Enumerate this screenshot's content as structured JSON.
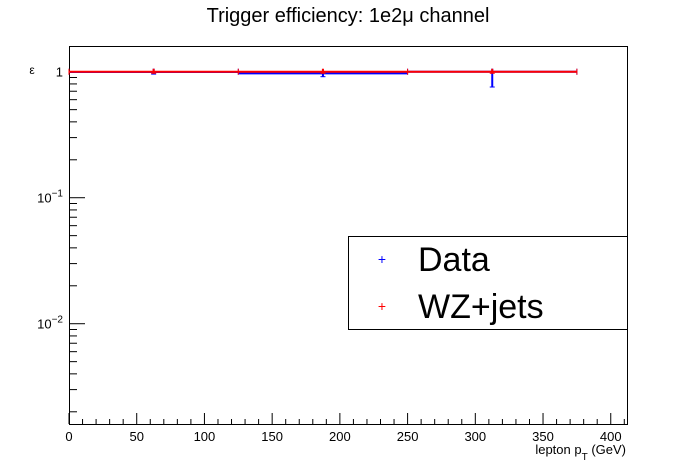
{
  "chart_data": {
    "type": "scatter",
    "title": "Trigger efficiency: 1e2μ channel",
    "xlabel": "lepton p",
    "xlabel_sub": "T",
    "xlabel_unit": " (GeV)",
    "ylabel": "ε",
    "xlim": [
      0,
      412
    ],
    "ylog": true,
    "ylim": [
      0.0016,
      1.6
    ],
    "xticks": [
      0,
      50,
      100,
      150,
      200,
      250,
      300,
      350,
      400
    ],
    "xtick_labels": [
      "0",
      "50",
      "100",
      "150",
      "200",
      "250",
      "300",
      "350",
      "400"
    ],
    "yticks": [
      {
        "value": 1,
        "base": "1",
        "exp": ""
      },
      {
        "value": 0.1,
        "base": "10",
        "exp": "−1"
      },
      {
        "value": 0.01,
        "base": "10",
        "exp": "−2"
      }
    ],
    "x_edges": [
      0,
      125,
      250,
      375
    ],
    "series": [
      {
        "name": "Data",
        "color": "#0000ff",
        "points": [
          {
            "x": 62.5,
            "y": 0.995,
            "ylow": 0.975,
            "yhigh": 1.0
          },
          {
            "x": 187.5,
            "y": 0.97,
            "ylow": 0.93,
            "yhigh": 0.99
          },
          {
            "x": 312.5,
            "y": 1.0,
            "ylow": 0.77,
            "yhigh": 1.0
          }
        ]
      },
      {
        "name": "WZ+jets",
        "color": "#ff0000",
        "points": [
          {
            "x": 62.5,
            "y": 1.0,
            "ylow": 0.99,
            "yhigh": 1.0
          },
          {
            "x": 187.5,
            "y": 1.0,
            "ylow": 0.99,
            "yhigh": 1.0
          },
          {
            "x": 312.5,
            "y": 1.0,
            "ylow": 0.99,
            "yhigh": 1.0
          }
        ]
      }
    ]
  },
  "legend": {
    "placement": "right",
    "entries": [
      {
        "label": "Data",
        "color": "#0000ff"
      },
      {
        "label": "WZ+jets",
        "color": "#ff0000"
      }
    ]
  }
}
